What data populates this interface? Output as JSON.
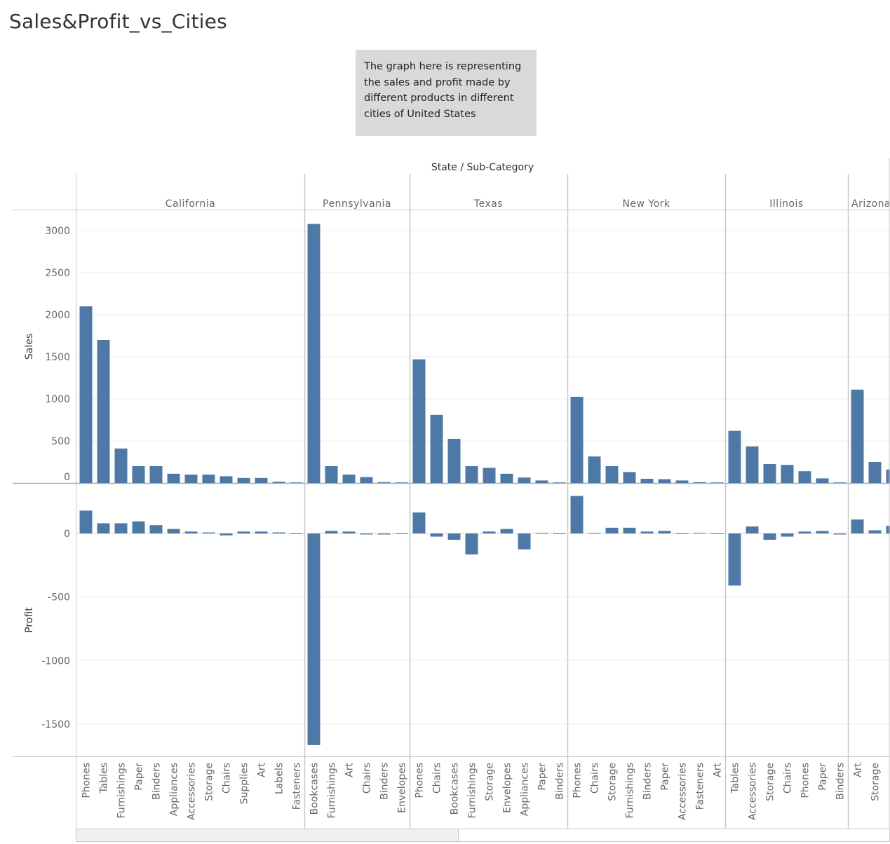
{
  "title": "Sales&Profit_vs_Cities",
  "annotation": "The graph here is representing the sales and profit made by different products in different cities of United States",
  "chart_data": {
    "type": "bar",
    "column_header": "State / Sub-Category",
    "rows": [
      {
        "label": "Sales",
        "ticks": [
          0,
          500,
          1000,
          1500,
          2000,
          2500,
          3000
        ]
      },
      {
        "label": "Profit",
        "ticks": [
          0,
          -500,
          -1000,
          -1500
        ]
      }
    ],
    "bar_color": "#4e79a7",
    "states": [
      {
        "name": "California",
        "categories": [
          "Phones",
          "Tables",
          "Furnishings",
          "Paper",
          "Binders",
          "Appliances",
          "Accessories",
          "Storage",
          "Chairs",
          "Supplies",
          "Art",
          "Labels",
          "Fasteners"
        ],
        "sales": [
          2100,
          1700,
          410,
          200,
          200,
          110,
          100,
          100,
          80,
          60,
          60,
          15,
          5
        ],
        "profit": [
          180,
          80,
          80,
          95,
          65,
          35,
          15,
          8,
          -15,
          15,
          15,
          8,
          -5
        ]
      },
      {
        "name": "Pennsylvania",
        "categories": [
          "Bookcases",
          "Furnishings",
          "Art",
          "Chairs",
          "Binders",
          "Envelopes"
        ],
        "sales": [
          3080,
          200,
          100,
          70,
          10,
          5
        ],
        "profit": [
          -1665,
          20,
          15,
          -8,
          -8,
          -5
        ]
      },
      {
        "name": "Texas",
        "categories": [
          "Phones",
          "Chairs",
          "Bookcases",
          "Furnishings",
          "Storage",
          "Envelopes",
          "Appliances",
          "Paper",
          "Binders"
        ],
        "sales": [
          1470,
          810,
          525,
          200,
          180,
          110,
          65,
          30,
          5
        ],
        "profit": [
          165,
          -25,
          -50,
          -165,
          15,
          35,
          -125,
          5,
          -5
        ]
      },
      {
        "name": "New York",
        "categories": [
          "Phones",
          "Chairs",
          "Storage",
          "Furnishings",
          "Binders",
          "Paper",
          "Accessories",
          "Fasteners",
          "Art"
        ],
        "sales": [
          1025,
          315,
          200,
          130,
          50,
          45,
          30,
          10,
          5
        ],
        "profit": [
          295,
          5,
          45,
          45,
          15,
          20,
          -5,
          5,
          -5
        ]
      },
      {
        "name": "Illinois",
        "categories": [
          "Tables",
          "Accessories",
          "Storage",
          "Chairs",
          "Phones",
          "Paper",
          "Binders"
        ],
        "sales": [
          620,
          435,
          225,
          215,
          140,
          55,
          5
        ],
        "profit": [
          -410,
          55,
          -50,
          -25,
          15,
          20,
          -8
        ]
      },
      {
        "name": "Arizona",
        "categories": [
          "Art",
          "Storage",
          ""
        ],
        "sales": [
          1110,
          250,
          160
        ],
        "profit": [
          110,
          25,
          60
        ]
      }
    ]
  }
}
